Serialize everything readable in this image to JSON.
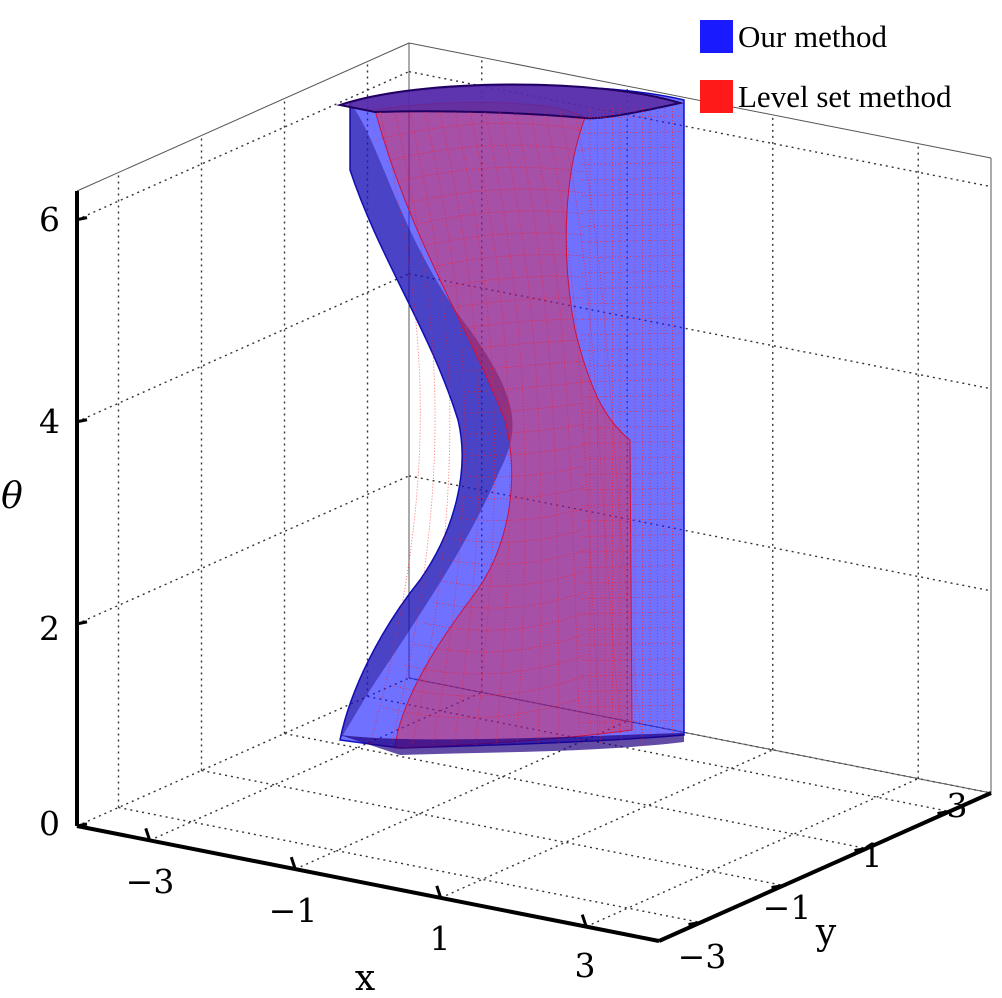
{
  "chart_data": {
    "type": "surface3d",
    "xlabel": "x",
    "ylabel": "y",
    "zlabel": "θ",
    "x_ticks": [
      "−3",
      "−1",
      "1",
      "3"
    ],
    "y_ticks": [
      "−3",
      "−1",
      "1",
      "3"
    ],
    "z_ticks": [
      "0",
      "2",
      "4",
      "6"
    ],
    "xlim": [
      -4,
      4
    ],
    "ylim": [
      -4,
      4
    ],
    "zlim": [
      0,
      6.2832
    ],
    "grid": true,
    "legend_position": "top-right",
    "colors": {
      "our_method": "#1a1aff",
      "level_set_method": "#ff1a1a"
    },
    "series": [
      {
        "name": "Our method",
        "color": "#1a1aff"
      },
      {
        "name": "Level set method",
        "color": "#ff1a1a"
      }
    ]
  }
}
